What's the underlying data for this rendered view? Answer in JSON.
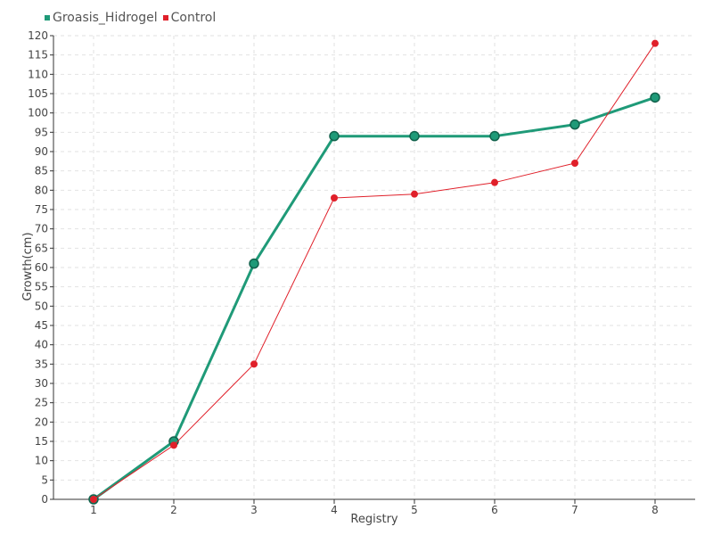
{
  "chart_data": {
    "type": "line",
    "title": "",
    "xlabel": "Registry",
    "ylabel": "Growth(cm)",
    "x": [
      1,
      2,
      3,
      4,
      5,
      6,
      7,
      8
    ],
    "xlim": [
      0.5,
      8.5
    ],
    "ylim": [
      0,
      120
    ],
    "ytick_step": 5,
    "grid": true,
    "legend_position": "top-left",
    "series": [
      {
        "name": "Groasis_Hidrogel",
        "color": "#1f9a78",
        "values": [
          0,
          15,
          61,
          94,
          94,
          94,
          97,
          104
        ]
      },
      {
        "name": "Control",
        "color": "#e0202a",
        "values": [
          0,
          14,
          35,
          78,
          79,
          82,
          87,
          118
        ]
      }
    ]
  }
}
